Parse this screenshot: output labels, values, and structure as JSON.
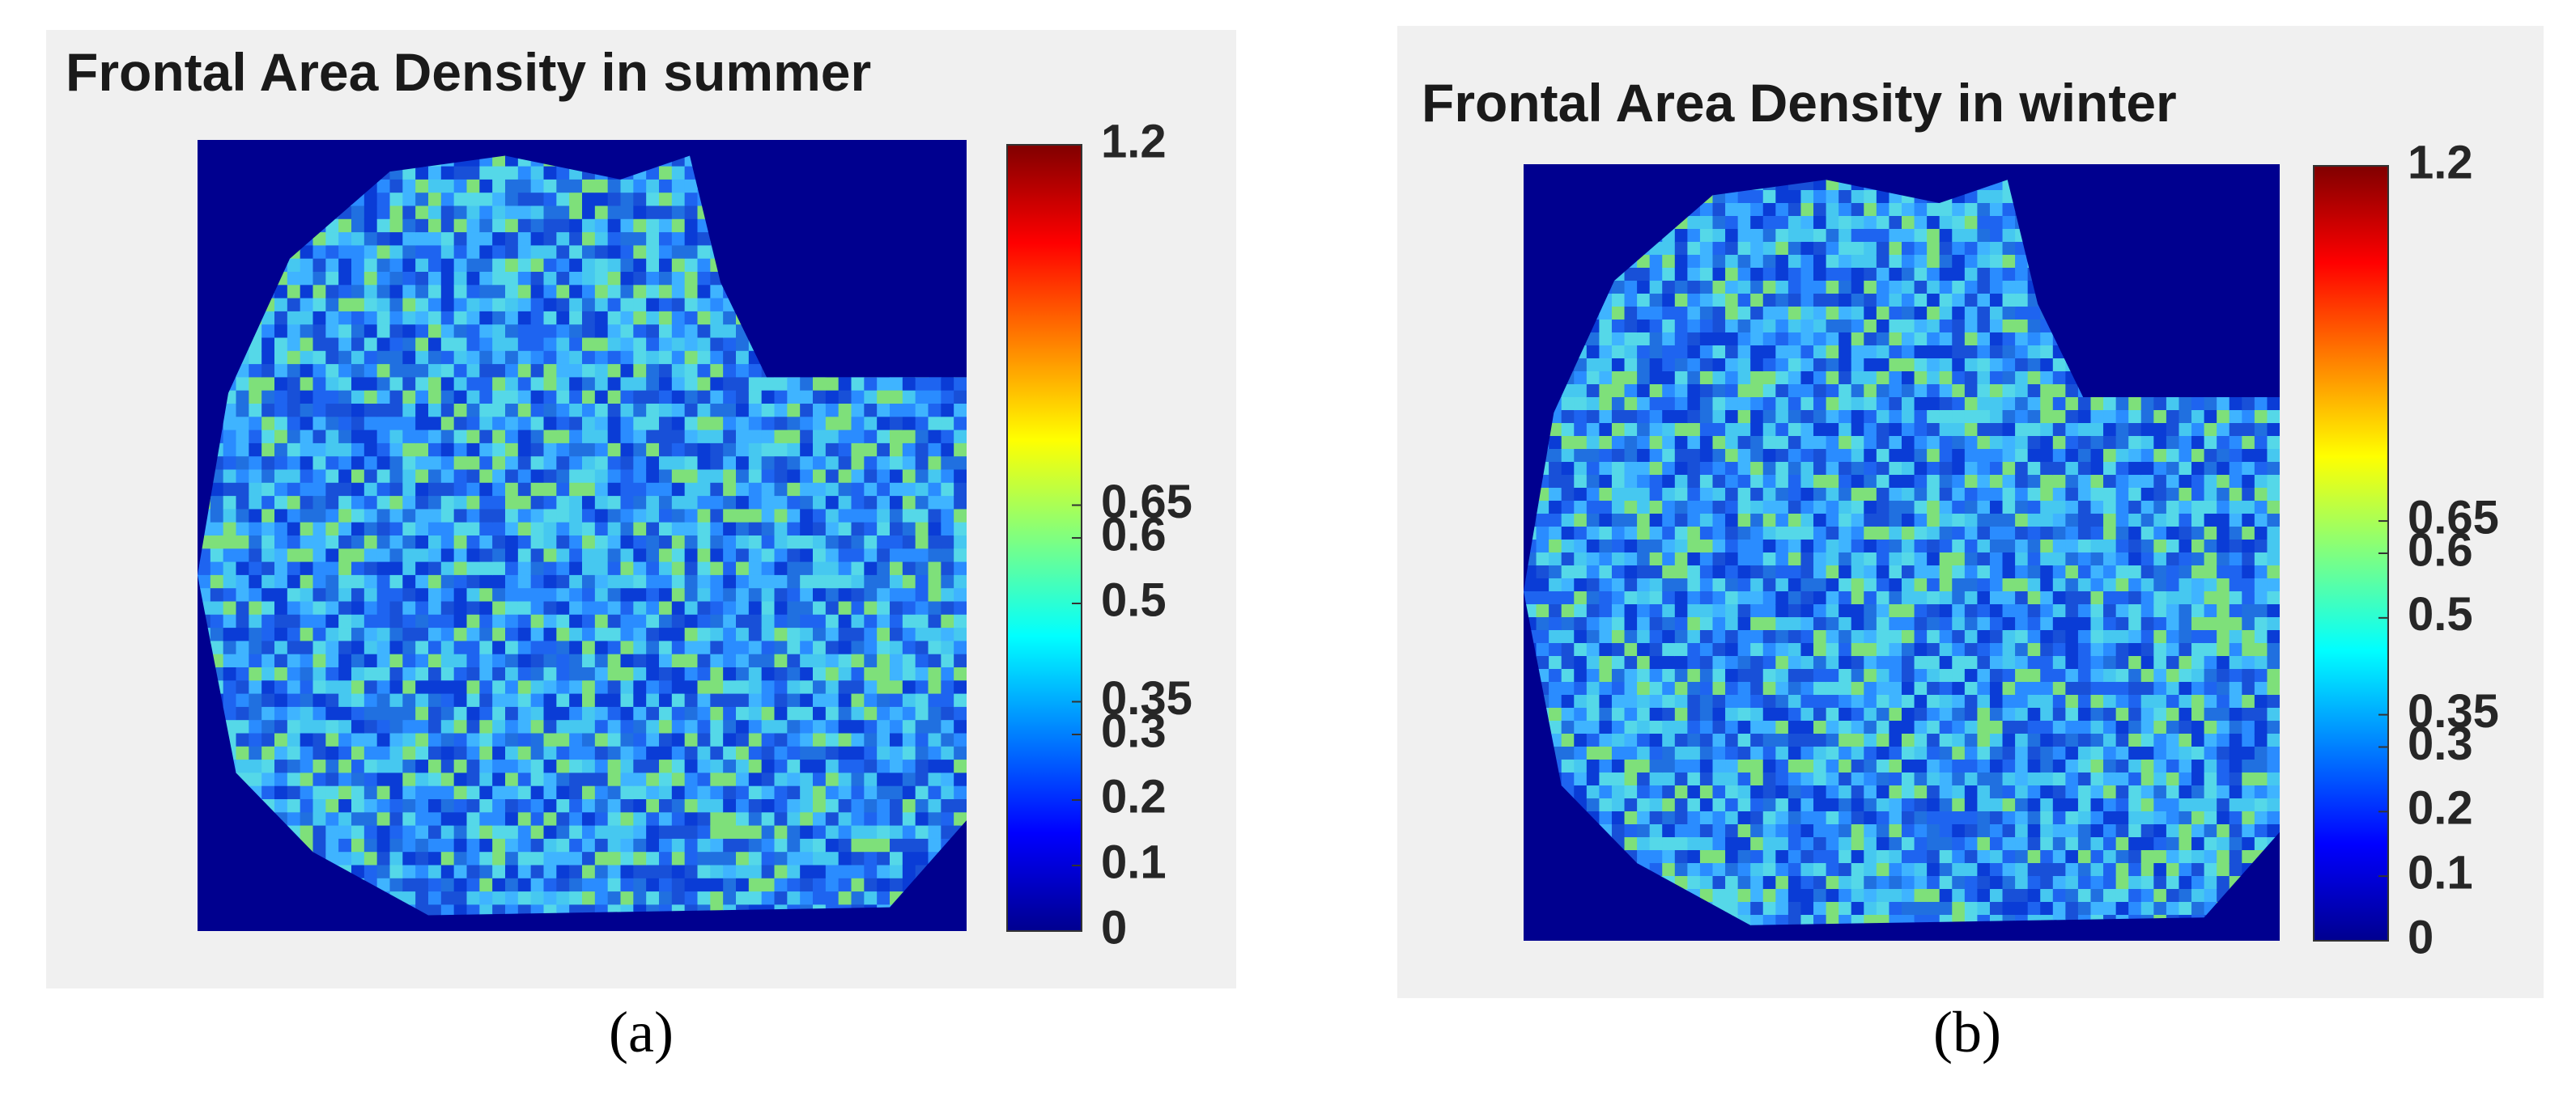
{
  "chart_data": [
    {
      "type": "heatmap",
      "title": "Frontal Area Density in summer",
      "label": "(a)",
      "colormap": "jet",
      "clim": [
        0,
        1.2
      ],
      "cticks": [
        0,
        0.1,
        0.2,
        0.3,
        0.35,
        0.5,
        0.6,
        0.65,
        1.2
      ]
    },
    {
      "type": "heatmap",
      "title": "Frontal Area Density in winter",
      "label": "(b)",
      "colormap": "jet",
      "clim": [
        0,
        1.2
      ],
      "cticks": [
        0,
        0.1,
        0.2,
        0.3,
        0.35,
        0.5,
        0.6,
        0.65,
        1.2
      ]
    }
  ]
}
